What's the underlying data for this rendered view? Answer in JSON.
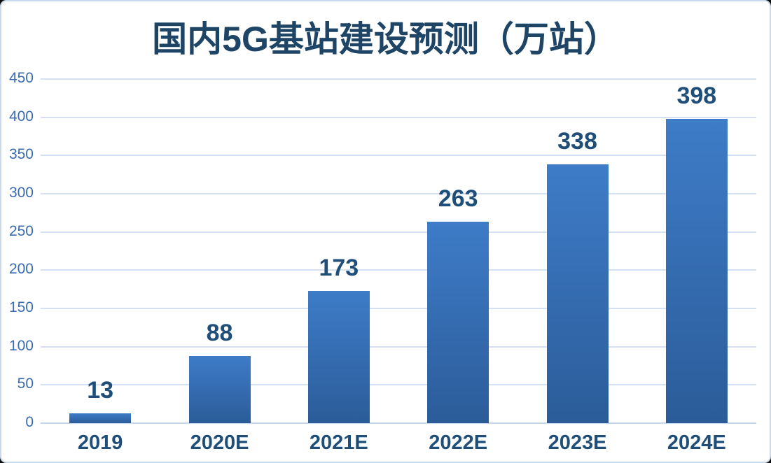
{
  "chart_data": {
    "type": "bar",
    "title": "国内5G基站建设预测（万站）",
    "categories": [
      "2019",
      "2020E",
      "2021E",
      "2022E",
      "2023E",
      "2024E"
    ],
    "values": [
      13,
      88,
      173,
      263,
      338,
      398
    ],
    "xlabel": "",
    "ylabel": "",
    "ylim": [
      0,
      450
    ],
    "yticks": [
      0,
      50,
      100,
      150,
      200,
      250,
      300,
      350,
      400,
      450
    ],
    "grid": true,
    "legend": false,
    "bar_value_labels_shown": true
  },
  "colors": {
    "title_text": "#1f4566",
    "value_label_text": "#1f4e79",
    "category_label_text": "#1f4e79",
    "ytick_label_text": "#3a6bb0",
    "gridline": "#d5e1f3",
    "axis_line": "#c6d6ec",
    "bar_gradient_top": "#3e7cc8",
    "bar_gradient_bottom": "#2b5c99",
    "chart_border": "#c9d9ee",
    "chart_background": "#ffffff"
  }
}
